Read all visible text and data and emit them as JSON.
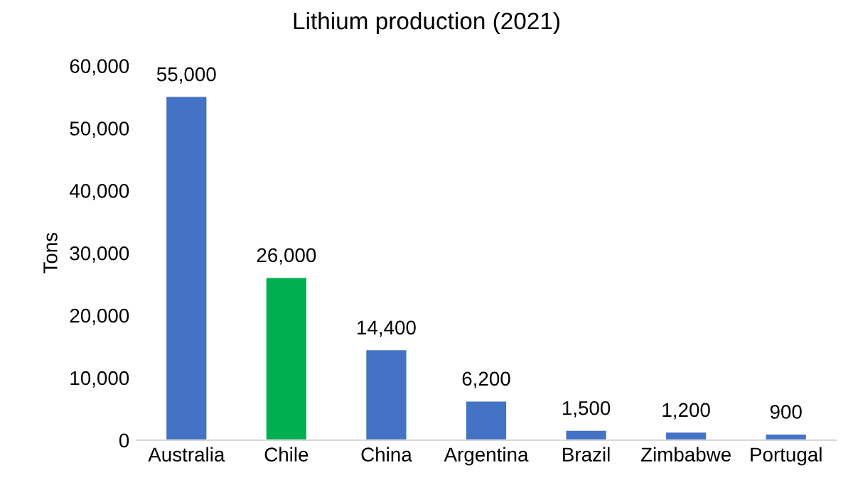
{
  "chart_data": {
    "type": "bar",
    "title": "Lithium production (2021)",
    "ylabel": "Tons",
    "categories": [
      "Australia",
      "Chile",
      "China",
      "Argentina",
      "Brazil",
      "Zimbabwe",
      "Portugal"
    ],
    "values": [
      55000,
      26000,
      14400,
      6200,
      1500,
      1200,
      900
    ],
    "colors": [
      "#4472c4",
      "#00b050",
      "#4472c4",
      "#4472c4",
      "#4472c4",
      "#4472c4",
      "#4472c4"
    ],
    "value_labels": [
      "55,000",
      "26,000",
      "14,400",
      "6,200",
      "1,500",
      "1,200",
      "900"
    ],
    "ylim": [
      0,
      60000
    ],
    "yticks": [
      {
        "value": 0,
        "label": "0"
      },
      {
        "value": 10000,
        "label": "10,000"
      },
      {
        "value": 20000,
        "label": "20,000"
      },
      {
        "value": 30000,
        "label": "30,000"
      },
      {
        "value": 40000,
        "label": "40,000"
      },
      {
        "value": 50000,
        "label": "50,000"
      },
      {
        "value": 60000,
        "label": "60,000"
      }
    ],
    "grid": false,
    "legend": false
  }
}
